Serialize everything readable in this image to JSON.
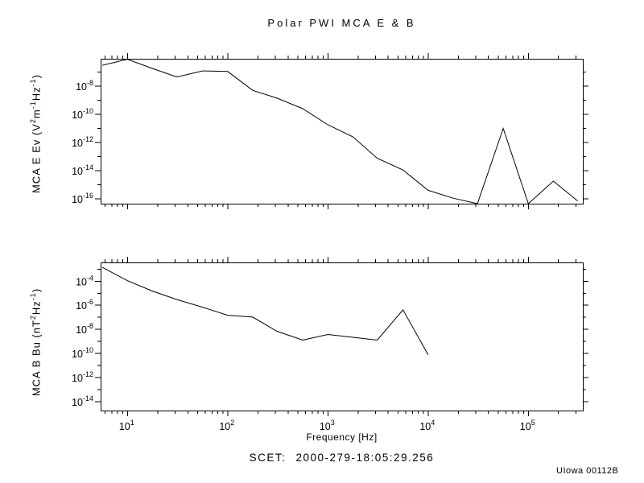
{
  "title": "Polar PWI MCA E & B",
  "axis": {
    "xlabel": "Frequency [Hz]",
    "log_base_label": "10",
    "x_tick_exponents": [
      1,
      2,
      3,
      4,
      5
    ]
  },
  "footer": {
    "scet_label": "SCET:",
    "scet_value": "2000-279-18:05:29.256",
    "credit": "UIowa 00112B"
  },
  "colors": {
    "background": "#ffffff",
    "line": "#000000",
    "text": "#000000"
  },
  "chart_data": [
    {
      "type": "line",
      "id": "mca-e",
      "series_name": "MCA E Ev",
      "title": "Polar PWI MCA E & B",
      "xlabel": "Frequency [Hz]",
      "ylabel": "MCA E Ev (V2m-1Hz-1)",
      "ylabel_parts": [
        {
          "t": "MCA E Ev (V"
        },
        {
          "sup": "2"
        },
        {
          "t": "m"
        },
        {
          "sup": "-1"
        },
        {
          "t": "Hz"
        },
        {
          "sup": "-1"
        },
        {
          "t": ")"
        }
      ],
      "xscale": "log",
      "yscale": "log",
      "grid": false,
      "legend": "none",
      "xlim": [
        5.4,
        350000
      ],
      "ylim": [
        4.5e-17,
        8.8e-07
      ],
      "y_tick_label_exponents": [
        -8,
        -10,
        -12,
        -14,
        -16
      ],
      "x": [
        5.6,
        10,
        17.8,
        31.1,
        56.2,
        100,
        178,
        311,
        562,
        1000,
        1780,
        3110,
        5620,
        10000,
        17800,
        31100,
        56200,
        100000,
        178000,
        311000
      ],
      "y": [
        3e-07,
        8e-07,
        1.8e-07,
        4.5e-08,
        1.2e-07,
        1.1e-07,
        5e-09,
        1.4e-09,
        2.5e-10,
        1.8e-11,
        2.5e-12,
        7.5e-14,
        1.1e-14,
        4e-16,
        1.1e-16,
        4.5e-17,
        1e-11,
        4.5e-17,
        1.8e-15,
        7e-17
      ]
    },
    {
      "type": "line",
      "id": "mca-b",
      "series_name": "MCA B Bu",
      "xlabel": "Frequency [Hz]",
      "ylabel": "MCA B Bu (nT2Hz-1)",
      "ylabel_parts": [
        {
          "t": "MCA B Bu (nT"
        },
        {
          "sup": "2"
        },
        {
          "t": "Hz"
        },
        {
          "sup": "-1"
        },
        {
          "t": ")"
        }
      ],
      "xscale": "log",
      "yscale": "log",
      "grid": false,
      "legend": "none",
      "xlim": [
        5.4,
        350000
      ],
      "ylim": [
        1.85e-15,
        0.0036
      ],
      "y_tick_label_exponents": [
        -4,
        -6,
        -8,
        -10,
        -12,
        -14
      ],
      "x": [
        5.6,
        10,
        17.8,
        31.1,
        56.2,
        100,
        178,
        311,
        562,
        1000,
        1780,
        3110,
        5620,
        10000
      ],
      "y": [
        0.0014,
        0.00011,
        1.5e-05,
        3e-06,
        7e-07,
        1.5e-07,
        1.05e-07,
        7e-09,
        1.3e-09,
        3.8e-09,
        2.2e-09,
        1.3e-09,
        4.2e-07,
        8e-11
      ]
    }
  ]
}
